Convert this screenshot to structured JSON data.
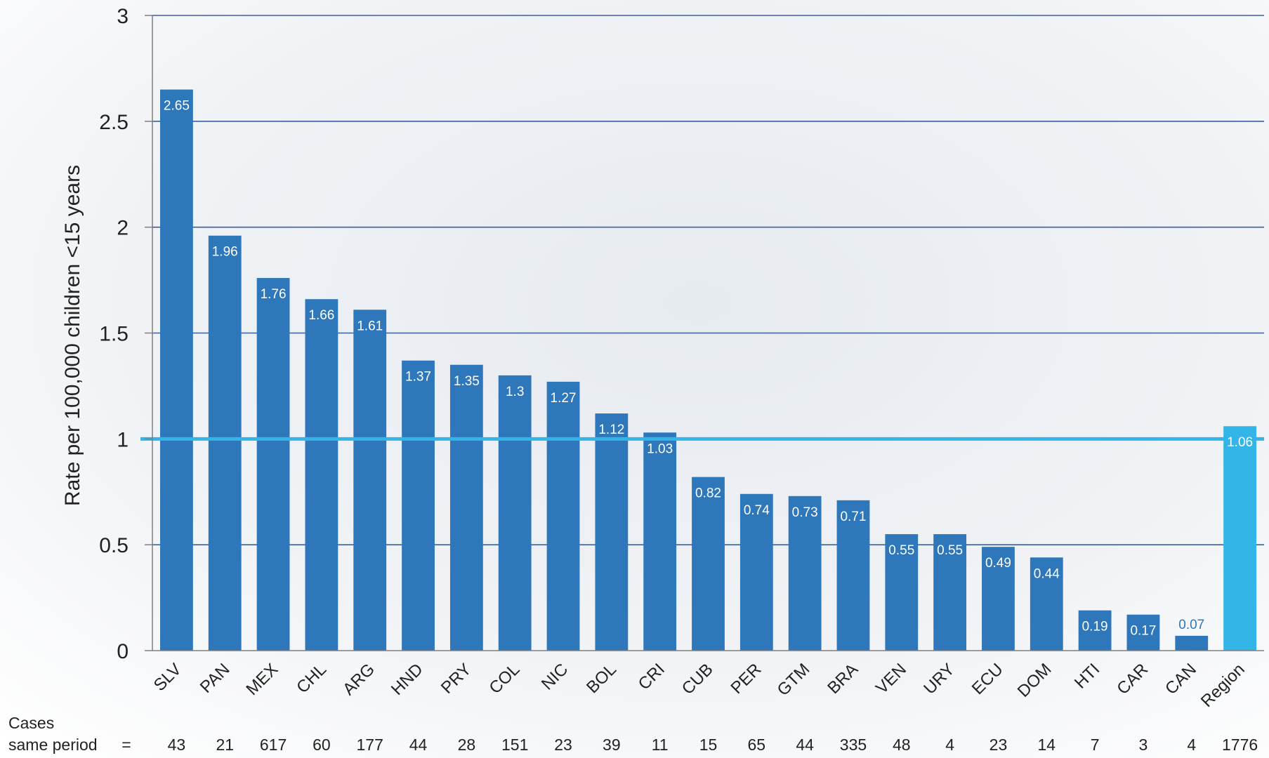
{
  "chart_data": {
    "type": "bar",
    "ylabel": "Rate per 100,000 children <15 years",
    "xlabel": "",
    "ylim": [
      0,
      3
    ],
    "yticks": [
      "0",
      "0.5",
      "1",
      "1.5",
      "2",
      "2.5",
      "3"
    ],
    "grid": true,
    "reference_line": 1,
    "categories": [
      "SLV",
      "PAN",
      "MEX",
      "CHL",
      "ARG",
      "HND",
      "PRY",
      "COL",
      "NIC",
      "BOL",
      "CRI",
      "CUB",
      "PER",
      "GTM",
      "BRA",
      "VEN",
      "URY",
      "ECU",
      "DOM",
      "HTI",
      "CAR",
      "CAN",
      "Region"
    ],
    "values": [
      2.65,
      1.96,
      1.76,
      1.66,
      1.61,
      1.37,
      1.35,
      1.3,
      1.27,
      1.12,
      1.03,
      0.82,
      0.74,
      0.73,
      0.71,
      0.55,
      0.55,
      0.49,
      0.44,
      0.19,
      0.17,
      0.07,
      1.06
    ],
    "value_labels": [
      "2.65",
      "1.96",
      "1.76",
      "1.66",
      "1.61",
      "1.37",
      "1.35",
      "1.3",
      "1.27",
      "1.12",
      "1.03",
      "0.82",
      "0.74",
      "0.73",
      "0.71",
      "0.55",
      "0.55",
      "0.49",
      "0.44",
      "0.19",
      "0.17",
      "0.07",
      "1.06"
    ],
    "cases_label_line1": "Cases",
    "cases_label_line2": "same period",
    "cases_equals": "=",
    "cases": [
      "43",
      "21",
      "617",
      "60",
      "177",
      "44",
      "28",
      "151",
      "23",
      "39",
      "11",
      "15",
      "65",
      "44",
      "335",
      "48",
      "4",
      "23",
      "14",
      "7",
      "3",
      "4",
      "1776"
    ],
    "colors": {
      "bar": "#2e77bb",
      "highlight_bar": "#33b5e8",
      "gridline": "#3e5f9e",
      "reference_line": "#33b5e8"
    }
  }
}
